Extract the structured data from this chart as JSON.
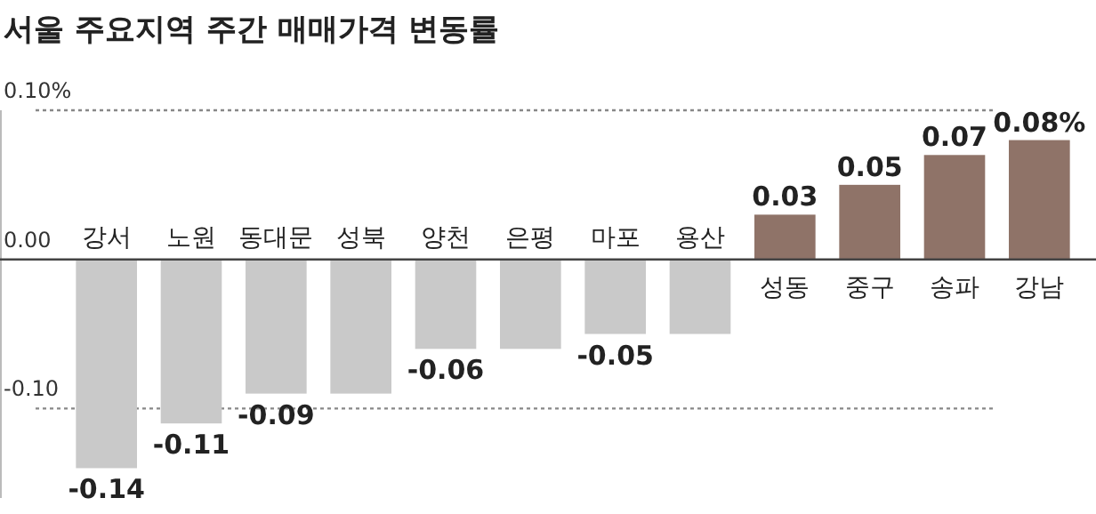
{
  "chart_data": {
    "type": "bar",
    "title": "서울 주요지역 주간 매매가격 변동률",
    "categories": [
      "강서",
      "노원",
      "동대문",
      "성북",
      "양천",
      "은평",
      "마포",
      "용산",
      "성동",
      "중구",
      "송파",
      "강남"
    ],
    "values": [
      -0.14,
      -0.11,
      -0.09,
      -0.09,
      -0.06,
      -0.06,
      -0.05,
      -0.05,
      0.03,
      0.05,
      0.07,
      0.08
    ],
    "colors": [
      "#c9c9c9",
      "#c9c9c9",
      "#c9c9c9",
      "#c9c9c9",
      "#c9c9c9",
      "#c9c9c9",
      "#c9c9c9",
      "#c9c9c9",
      "#8f7368",
      "#8f7368",
      "#8f7368",
      "#8f7368"
    ],
    "value_labels": [
      "-0.14",
      "-0.11",
      "-0.09",
      null,
      "-0.06",
      null,
      "-0.05",
      null,
      "0.03",
      "0.05",
      "0.07",
      "0.08%"
    ],
    "ylim": [
      -0.16,
      0.1
    ],
    "yticks": [
      {
        "value": 0.1,
        "label": "0.10%"
      },
      {
        "value": 0,
        "label": "0.00"
      },
      {
        "value": -0.1,
        "label": "-0.10"
      }
    ],
    "grid": "y"
  }
}
